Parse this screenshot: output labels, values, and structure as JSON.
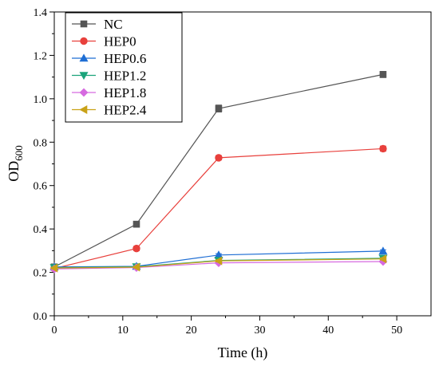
{
  "chart_data": {
    "type": "line",
    "xlabel": "Time (h)",
    "ylabel": {
      "main": "OD",
      "subscript": "600"
    },
    "xlim": [
      0,
      55
    ],
    "ylim": [
      0.0,
      1.4
    ],
    "xticks": [
      0,
      10,
      20,
      30,
      40,
      50
    ],
    "yticks": [
      0.0,
      0.2,
      0.4,
      0.6,
      0.8,
      1.0,
      1.2,
      1.4
    ],
    "xtick_labels": [
      "0",
      "10",
      "20",
      "30",
      "40",
      "50"
    ],
    "ytick_labels": [
      "0.0",
      "0.2",
      "0.4",
      "0.6",
      "0.8",
      "1.0",
      "1.2",
      "1.4"
    ],
    "legend_position": "top-left",
    "grid": false,
    "x": [
      0,
      12,
      24,
      48
    ],
    "series": [
      {
        "name": "NC",
        "color": "#555555",
        "marker": "square",
        "values": [
          0.225,
          0.422,
          0.955,
          1.112
        ],
        "errors": [
          0.006,
          0.008,
          0.016,
          0.014
        ]
      },
      {
        "name": "HEP0",
        "color": "#e8403c",
        "marker": "circle",
        "values": [
          0.218,
          0.31,
          0.728,
          0.77
        ],
        "errors": [
          0.006,
          0.01,
          0.01,
          0.012
        ]
      },
      {
        "name": "HEP0.6",
        "color": "#1f6ed4",
        "marker": "triangle-up",
        "values": [
          0.225,
          0.228,
          0.28,
          0.298
        ],
        "errors": [
          0.004,
          0.004,
          0.006,
          0.006
        ]
      },
      {
        "name": "HEP1.2",
        "color": "#1aa37a",
        "marker": "triangle-down",
        "values": [
          0.222,
          0.226,
          0.255,
          0.265
        ],
        "errors": [
          0.004,
          0.004,
          0.005,
          0.005
        ]
      },
      {
        "name": "HEP1.8",
        "color": "#d66ae0",
        "marker": "diamond",
        "values": [
          0.216,
          0.222,
          0.244,
          0.25
        ],
        "errors": [
          0.004,
          0.004,
          0.005,
          0.005
        ]
      },
      {
        "name": "HEP2.4",
        "color": "#c9a217",
        "marker": "triangle-left",
        "values": [
          0.22,
          0.224,
          0.253,
          0.262
        ],
        "errors": [
          0.004,
          0.004,
          0.005,
          0.005
        ]
      }
    ]
  }
}
